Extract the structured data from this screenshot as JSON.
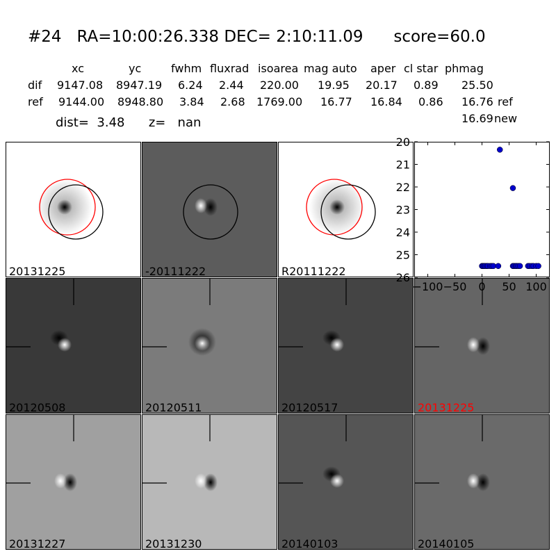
{
  "header": {
    "title": "#24   RA=10:00:26.338 DEC= 2:10:11.09      score=60.0",
    "columns": [
      "xc",
      "yc",
      "fwhm",
      "fluxrad",
      "isoarea",
      "mag auto",
      "aper",
      "cl star",
      "phmag"
    ],
    "rows": [
      {
        "label": "dif",
        "values": [
          "9147.08",
          "8947.19",
          "6.24",
          "2.44",
          "220.00",
          "19.95",
          "20.17",
          "0.89",
          "25.50"
        ],
        "note": ""
      },
      {
        "label": "ref",
        "values": [
          "9144.00",
          "8948.80",
          "3.84",
          "2.68",
          "1769.00",
          "16.77",
          "16.84",
          "0.86",
          "16.76"
        ],
        "note": "ref"
      }
    ],
    "new_phmag": "16.69",
    "new_label": "new",
    "dist_label": "dist=",
    "dist_value": "3.48",
    "z_label": "z=",
    "z_value": "nan"
  },
  "thumbs": [
    {
      "label": "20131225",
      "bg": "#ffffff",
      "blob": "dark",
      "circles": [
        "red",
        "black"
      ],
      "crosshair": false
    },
    {
      "label": "-20111222",
      "bg": "#5c5c5c",
      "blob": "white-dark",
      "circles": [
        "black"
      ],
      "crosshair": false
    },
    {
      "label": "R20111222",
      "bg": "#ffffff",
      "blob": "dark",
      "circles": [
        "red",
        "black"
      ],
      "crosshair": false
    },
    {
      "label": "20120508",
      "bg": "#393939",
      "blob": "dark-white",
      "circles": [],
      "crosshair": true
    },
    {
      "label": "20120511",
      "bg": "#7b7b7b",
      "blob": "ring",
      "circles": [],
      "crosshair": true
    },
    {
      "label": "20120517",
      "bg": "#444444",
      "blob": "dark-white",
      "circles": [],
      "crosshair": true
    },
    {
      "label": "20131225",
      "bg": "#656565",
      "blob": "white-dark",
      "circles": [],
      "crosshair": true,
      "label_color": "#ff0000"
    },
    {
      "label": "20131227",
      "bg": "#a0a0a0",
      "blob": "white-dark",
      "circles": [],
      "crosshair": true
    },
    {
      "label": "20131230",
      "bg": "#b8b8b8",
      "blob": "white-dark",
      "circles": [],
      "crosshair": true
    },
    {
      "label": "20140103",
      "bg": "#555555",
      "blob": "dark-white",
      "circles": [],
      "crosshair": true
    },
    {
      "label": "20140105",
      "bg": "#6a6a6a",
      "blob": "white-dark",
      "circles": [],
      "crosshair": true
    }
  ],
  "chart_data": {
    "type": "scatter",
    "title": "",
    "xlabel": "",
    "ylabel": "",
    "xlim": [
      -125,
      125
    ],
    "ylim": [
      26,
      20
    ],
    "y_inverted": true,
    "xticks": [
      -100,
      -50,
      0,
      50,
      100
    ],
    "yticks": [
      20,
      21,
      22,
      23,
      24,
      25,
      26
    ],
    "marker_color": "#0000cc",
    "series": [
      {
        "x": [
          0,
          2,
          4,
          6,
          9,
          11,
          15,
          18,
          21,
          30,
          33,
          57,
          57,
          59,
          62,
          64,
          67,
          70,
          85,
          88,
          92,
          95,
          100,
          104
        ],
        "y": [
          25.5,
          25.5,
          25.5,
          25.5,
          25.5,
          25.5,
          25.5,
          25.5,
          25.5,
          25.5,
          20.35,
          22.05,
          25.5,
          25.5,
          25.5,
          25.5,
          25.5,
          25.5,
          25.5,
          25.5,
          25.5,
          25.5,
          25.5,
          25.5
        ]
      }
    ]
  }
}
